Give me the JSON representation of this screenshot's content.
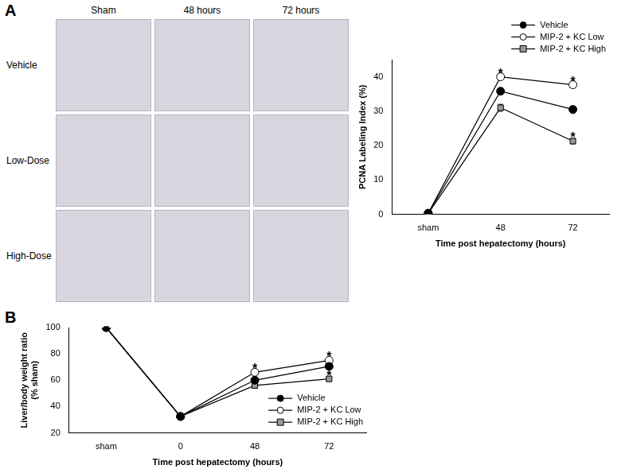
{
  "figure": {
    "panels": [
      "A",
      "B"
    ],
    "micrographs": {
      "columns": [
        "Sham",
        "48 hours",
        "72 hours"
      ],
      "rows": [
        "Vehicle",
        "Low-Dose",
        "High-Dose"
      ]
    }
  },
  "chart_data": [
    {
      "type": "line",
      "y_label": [
        "PCNA Labeling Index (%)"
      ],
      "x_label": "Time post hepatectomy (hours)",
      "categories": [
        "sham",
        "48",
        "72"
      ],
      "series": [
        {
          "name": "Vehicle",
          "color": "#000000",
          "marker": "circle",
          "values": [
            0.3,
            35.8,
            30.5
          ],
          "errors": [
            0.2,
            0.8,
            1.0
          ]
        },
        {
          "name": "MIP-2 + KC Low",
          "color": "#ffffff",
          "marker": "circle",
          "values": [
            0.3,
            40.0,
            37.7
          ],
          "errors": [
            0.2,
            0.8,
            0.6
          ]
        },
        {
          "name": "MIP-2 + KC High",
          "color": "#999999",
          "marker": "square",
          "values": [
            0.3,
            31.0,
            21.3
          ],
          "errors": [
            0.2,
            1.0,
            0.8
          ]
        }
      ],
      "annotations": [
        {
          "text": "*",
          "series": "MIP-2 + KC Low",
          "category": "48"
        },
        {
          "text": "*",
          "series": "MIP-2 + KC Low",
          "category": "72"
        },
        {
          "text": "*",
          "series": "MIP-2 + KC High",
          "category": "72"
        }
      ],
      "ylim": [
        0,
        45
      ],
      "yticks": [
        0,
        10,
        20,
        30,
        40
      ],
      "grid": false,
      "legend": "top"
    },
    {
      "type": "line",
      "y_label": [
        "Liver/body weight ratio",
        "(% sham)"
      ],
      "x_label": "Time post hepatectomy (hours)",
      "categories": [
        "sham",
        "0",
        "48",
        "72"
      ],
      "series": [
        {
          "name": "Vehicle",
          "color": "#000000",
          "marker": "circle",
          "values": [
            100,
            32.5,
            60,
            70.5
          ],
          "errors": [
            0.5,
            1.0,
            1.2,
            2.0
          ]
        },
        {
          "name": "MIP-2 + KC Low",
          "color": "#ffffff",
          "marker": "circle",
          "values": [
            100,
            32.5,
            66,
            75
          ],
          "errors": [
            0.5,
            1.0,
            1.0,
            2.0
          ]
        },
        {
          "name": "MIP-2 + KC High",
          "color": "#999999",
          "marker": "square",
          "values": [
            100,
            32.5,
            56,
            61
          ],
          "errors": [
            0.5,
            1.0,
            2.0,
            1.5
          ]
        }
      ],
      "annotations": [
        {
          "text": "*",
          "series": "MIP-2 + KC Low",
          "category": "48"
        },
        {
          "text": "*",
          "series": "MIP-2 + KC Low",
          "category": "72"
        },
        {
          "text": "*",
          "series": "MIP-2 + KC High",
          "category": "72"
        }
      ],
      "ylim": [
        20,
        100
      ],
      "yticks": [
        20,
        40,
        60,
        80,
        100
      ],
      "grid": false,
      "legend": "lower right"
    }
  ]
}
